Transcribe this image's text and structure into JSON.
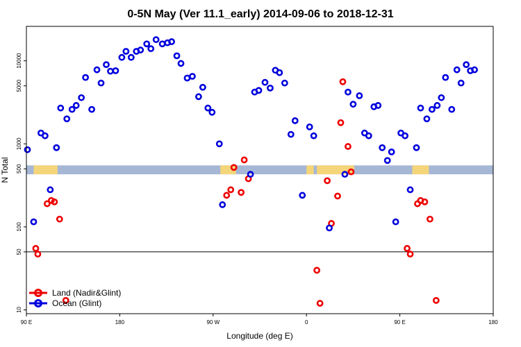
{
  "chart_data": {
    "type": "scatter",
    "title": "0-5N May (Ver 11.1_early)   2014-09-06 to 2018-12-31",
    "xlabel": "Longitude (deg E)",
    "ylabel": "N Total",
    "x_axis": {
      "domain": [
        90,
        450
      ],
      "ticks": [
        {
          "value": 90,
          "label": "90 E"
        },
        {
          "value": 180,
          "label": "180"
        },
        {
          "value": 270,
          "label": "90 W"
        },
        {
          "value": 360,
          "label": "0"
        },
        {
          "value": 450,
          "label": "90 E"
        },
        {
          "value": 540,
          "label": "180"
        }
      ],
      "range": [
        90,
        540
      ]
    },
    "y_axis": {
      "scale": "log",
      "range": [
        9,
        26000
      ],
      "ticks": [
        10,
        50,
        100,
        500,
        1000,
        5000,
        10000
      ],
      "tick_labels": [
        "10",
        "50",
        "100",
        "500",
        "1000",
        "5000",
        "10000"
      ]
    },
    "reference_line": 50,
    "land_band": {
      "y_range": [
        430,
        550
      ],
      "ocean_color": "#a5b7d4",
      "land_color": "#f5d57a",
      "land_intervals": [
        [
          97,
          120
        ],
        [
          277,
          292
        ],
        [
          360,
          367
        ],
        [
          370,
          406
        ],
        [
          462,
          478
        ]
      ]
    },
    "legend": {
      "position": "bottom-left",
      "entries": [
        {
          "label": "Land (Nadir&Glint)",
          "color": "#ee0000"
        },
        {
          "label": "Ocean (Glint)",
          "color": "#0000dd"
        }
      ]
    },
    "series": [
      {
        "name": "Land (Nadir&Glint)",
        "color": "#ee0000",
        "points": [
          [
            99,
            55
          ],
          [
            101,
            47
          ],
          [
            110,
            190
          ],
          [
            114,
            208
          ],
          [
            117,
            200
          ],
          [
            122,
            124
          ],
          [
            128,
            13
          ],
          [
            283,
            240
          ],
          [
            287,
            280
          ],
          [
            290,
            520
          ],
          [
            297,
            260
          ],
          [
            300,
            640
          ],
          [
            304,
            380
          ],
          [
            370,
            30
          ],
          [
            373,
            12
          ],
          [
            380,
            360
          ],
          [
            384,
            110
          ],
          [
            390,
            235
          ],
          [
            393,
            1800
          ],
          [
            395,
            5600
          ],
          [
            400,
            930
          ],
          [
            403,
            460
          ],
          [
            457,
            55
          ],
          [
            460,
            47
          ],
          [
            467,
            190
          ],
          [
            470,
            208
          ],
          [
            474,
            200
          ],
          [
            479,
            124
          ],
          [
            485,
            13
          ]
        ]
      },
      {
        "name": "Ocean (Glint)",
        "color": "#0000dd",
        "points": [
          [
            91,
            850
          ],
          [
            97,
            115
          ],
          [
            104,
            1350
          ],
          [
            108,
            1250
          ],
          [
            113,
            280
          ],
          [
            119,
            900
          ],
          [
            123,
            2700
          ],
          [
            129,
            2000
          ],
          [
            134,
            2600
          ],
          [
            138,
            2900
          ],
          [
            143,
            3600
          ],
          [
            147,
            6300
          ],
          [
            153,
            2600
          ],
          [
            158,
            7800
          ],
          [
            162,
            5400
          ],
          [
            167,
            9000
          ],
          [
            171,
            7500
          ],
          [
            176,
            7600
          ],
          [
            182,
            11000
          ],
          [
            186,
            13000
          ],
          [
            191,
            11000
          ],
          [
            196,
            13000
          ],
          [
            200,
            13500
          ],
          [
            206,
            16000
          ],
          [
            210,
            14000
          ],
          [
            215,
            18000
          ],
          [
            221,
            16000
          ],
          [
            226,
            16500
          ],
          [
            230,
            17000
          ],
          [
            235,
            11500
          ],
          [
            239,
            9300
          ],
          [
            245,
            6200
          ],
          [
            250,
            6500
          ],
          [
            256,
            3700
          ],
          [
            260,
            4800
          ],
          [
            265,
            2700
          ],
          [
            269,
            2400
          ],
          [
            276,
            1000
          ],
          [
            279,
            185
          ],
          [
            306,
            430
          ],
          [
            310,
            4200
          ],
          [
            314,
            4400
          ],
          [
            320,
            5500
          ],
          [
            325,
            4700
          ],
          [
            330,
            7700
          ],
          [
            334,
            7200
          ],
          [
            339,
            5400
          ],
          [
            345,
            1300
          ],
          [
            349,
            1900
          ],
          [
            356,
            240
          ],
          [
            363,
            1600
          ],
          [
            367,
            1250
          ],
          [
            382,
            97
          ],
          [
            397,
            430
          ],
          [
            400,
            4200
          ],
          [
            405,
            3000
          ],
          [
            411,
            3800
          ],
          [
            416,
            1350
          ],
          [
            420,
            1250
          ],
          [
            425,
            2800
          ],
          [
            429,
            2900
          ],
          [
            433,
            900
          ],
          [
            438,
            630
          ],
          [
            442,
            800
          ],
          [
            446,
            115
          ],
          [
            451,
            1350
          ],
          [
            455,
            1250
          ],
          [
            460,
            280
          ],
          [
            466,
            900
          ],
          [
            470,
            2700
          ],
          [
            476,
            2000
          ],
          [
            481,
            2600
          ],
          [
            486,
            2900
          ],
          [
            490,
            3600
          ],
          [
            494,
            6300
          ],
          [
            500,
            2600
          ],
          [
            505,
            7800
          ],
          [
            509,
            5400
          ],
          [
            514,
            9000
          ],
          [
            518,
            7600
          ],
          [
            522,
            7800
          ]
        ]
      }
    ]
  }
}
